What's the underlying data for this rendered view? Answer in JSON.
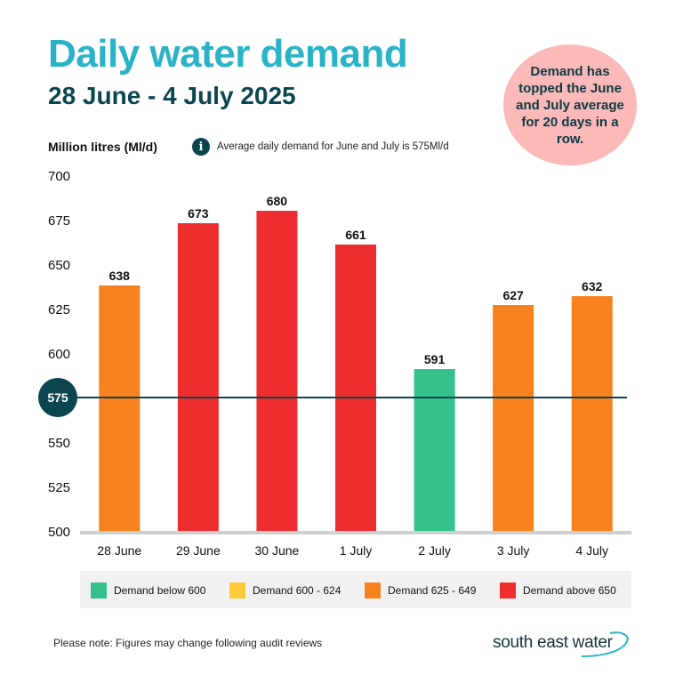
{
  "title": "Daily water demand",
  "subtitle": "28 June - 4 July 2025",
  "callout": "Demand has topped the June and July average for 20 days in a row.",
  "y_axis_label": "Million litres (Ml/d)",
  "info_text": "Average daily demand for June and July is 575Ml/d",
  "info_icon": "i",
  "chart_data": {
    "type": "bar",
    "categories": [
      "28 June",
      "29 June",
      "30 June",
      "1 July",
      "2 July",
      "3 July",
      "4 July"
    ],
    "values": [
      638,
      673,
      680,
      661,
      591,
      627,
      632
    ],
    "value_labels": [
      "638",
      "673",
      "680",
      "661",
      "591",
      "627",
      "632"
    ],
    "bar_colors": [
      "#f7811e",
      "#ee2d2e",
      "#ee2d2e",
      "#ee2d2e",
      "#34c18a",
      "#f7811e",
      "#f7811e"
    ],
    "ylim": [
      500,
      700
    ],
    "y_ticks": [
      500,
      525,
      550,
      575,
      600,
      625,
      650,
      675,
      700
    ],
    "y_tick_labels": [
      "500",
      "525",
      "550",
      "575",
      "600",
      "625",
      "650",
      "675",
      "700"
    ],
    "reference_line": {
      "value": 575,
      "label": "575",
      "color": "#0b4650"
    },
    "xlabel": "",
    "ylabel": "Million litres (Ml/d)",
    "title": "Daily water demand"
  },
  "legend": [
    {
      "label": "Demand below 600",
      "color": "#34c18a"
    },
    {
      "label": "Demand 600 - 624",
      "color": "#fecb3a"
    },
    {
      "label": "Demand 625 - 649",
      "color": "#f7811e"
    },
    {
      "label": "Demand above 650",
      "color": "#ee2d2e"
    }
  ],
  "note": "Please note: Figures may change following audit reviews",
  "logo": {
    "text": "south east water",
    "icon": "water-swoosh-icon"
  }
}
